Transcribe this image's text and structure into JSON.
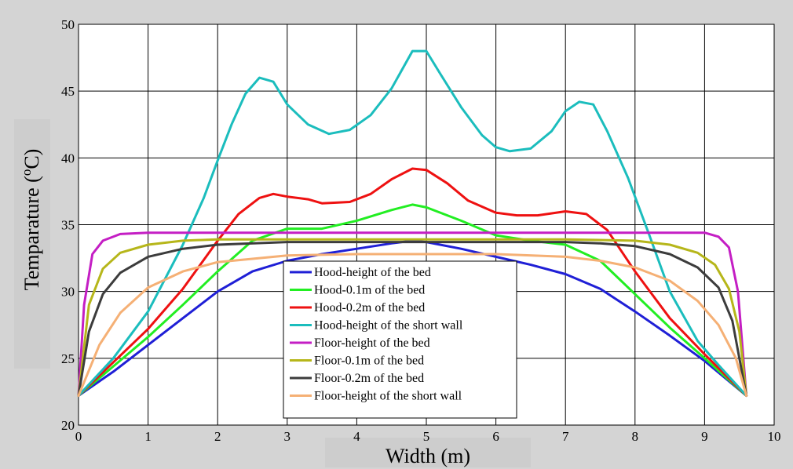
{
  "chart_data": {
    "type": "line",
    "xlabel": "Width (m)",
    "ylabel": "Temparature (oC)",
    "ylabel_parts": {
      "main": "Temparature (",
      "sup": "o",
      "unit": "C)"
    },
    "xlim": [
      0,
      10
    ],
    "ylim": [
      20,
      50
    ],
    "x_ticks": [
      "0",
      "1",
      "2",
      "3",
      "4",
      "5",
      "6",
      "7",
      "8",
      "9",
      "10"
    ],
    "y_ticks": [
      "20",
      "25",
      "30",
      "35",
      "40",
      "45",
      "50"
    ],
    "grid": true,
    "legend_position": "bottom-center",
    "series": [
      {
        "name": "Hood-height of the bed",
        "color": "#1f1fd6",
        "x": [
          0,
          0.5,
          1,
          1.5,
          2,
          2.5,
          3,
          3.5,
          4,
          4.5,
          4.8,
          5,
          5.5,
          6,
          6.5,
          7,
          7.5,
          8,
          8.5,
          9,
          9.6
        ],
        "y": [
          22.2,
          24,
          26,
          28,
          30,
          31.5,
          32.3,
          32.8,
          33.2,
          33.6,
          33.8,
          33.7,
          33.2,
          32.6,
          32,
          31.3,
          30.2,
          28.5,
          26.7,
          24.8,
          22.2
        ]
      },
      {
        "name": "Hood-0.1m of the bed",
        "color": "#22ee22",
        "x": [
          0,
          0.5,
          1,
          1.5,
          2,
          2.5,
          3,
          3.5,
          4,
          4.5,
          4.8,
          5,
          5.5,
          6,
          6.5,
          7,
          7.5,
          8,
          8.5,
          9,
          9.6
        ],
        "y": [
          22.2,
          24.4,
          26.6,
          29,
          31.5,
          33.8,
          34.7,
          34.7,
          35.3,
          36.1,
          36.5,
          36.3,
          35.3,
          34.2,
          33.8,
          33.5,
          32.3,
          29.8,
          27.3,
          25,
          22.2
        ]
      },
      {
        "name": "Hood-0.2m of the bed",
        "color": "#ee1111",
        "x": [
          0,
          0.5,
          1,
          1.5,
          2,
          2.3,
          2.6,
          2.8,
          3,
          3.3,
          3.5,
          3.9,
          4.2,
          4.5,
          4.8,
          5,
          5.3,
          5.6,
          6,
          6.3,
          6.6,
          7,
          7.3,
          7.6,
          8,
          8.5,
          9,
          9.6
        ],
        "y": [
          22.2,
          24.7,
          27.2,
          30.2,
          33.8,
          35.8,
          37,
          37.3,
          37.1,
          36.9,
          36.6,
          36.7,
          37.3,
          38.4,
          39.2,
          39.1,
          38.1,
          36.8,
          35.9,
          35.7,
          35.7,
          36,
          35.8,
          34.6,
          31.5,
          28,
          25.3,
          22.2
        ]
      },
      {
        "name": "Hood-height of the short wall",
        "color": "#1bbdbd",
        "x": [
          0,
          0.5,
          1,
          1.5,
          1.8,
          2,
          2.2,
          2.4,
          2.6,
          2.8,
          3,
          3.3,
          3.6,
          3.9,
          4.2,
          4.5,
          4.8,
          5,
          5.2,
          5.5,
          5.8,
          6,
          6.2,
          6.5,
          6.8,
          7,
          7.2,
          7.4,
          7.6,
          7.9,
          8.2,
          8.5,
          8.9,
          9.2,
          9.6
        ],
        "y": [
          22.2,
          25,
          28.5,
          33.5,
          37,
          39.8,
          42.5,
          44.8,
          46,
          45.7,
          44,
          42.5,
          41.8,
          42.1,
          43.2,
          45.2,
          48,
          48,
          46.3,
          43.8,
          41.7,
          40.8,
          40.5,
          40.7,
          42,
          43.5,
          44.2,
          44,
          42,
          38.5,
          34.3,
          30,
          26.3,
          24.5,
          22.2
        ]
      },
      {
        "name": "Floor-height of the bed",
        "color": "#c41ec4",
        "x": [
          0,
          0.08,
          0.2,
          0.35,
          0.6,
          1,
          2,
          3,
          4,
          5,
          6,
          7,
          8,
          9,
          9.2,
          9.35,
          9.48,
          9.6
        ],
        "y": [
          22.2,
          29,
          32.8,
          33.8,
          34.3,
          34.4,
          34.4,
          34.4,
          34.4,
          34.4,
          34.4,
          34.4,
          34.4,
          34.4,
          34.1,
          33.3,
          30,
          22.2
        ]
      },
      {
        "name": "Floor-0.1m of the bed",
        "color": "#b6b61a",
        "x": [
          0,
          0.15,
          0.35,
          0.6,
          1,
          1.5,
          2,
          3,
          4,
          5,
          6,
          7,
          8,
          8.5,
          8.9,
          9.15,
          9.35,
          9.5,
          9.6
        ],
        "y": [
          22.2,
          29,
          31.7,
          32.9,
          33.5,
          33.8,
          33.9,
          33.9,
          33.9,
          33.9,
          33.9,
          33.9,
          33.8,
          33.5,
          32.9,
          32,
          30.2,
          27,
          22.2
        ]
      },
      {
        "name": "Floor-0.2m of the bed",
        "color": "#3c3c3c",
        "x": [
          0,
          0.15,
          0.35,
          0.6,
          1,
          1.5,
          2,
          3,
          4,
          5,
          6,
          7,
          7.5,
          8,
          8.5,
          8.9,
          9.2,
          9.4,
          9.6
        ],
        "y": [
          22.2,
          27,
          29.8,
          31.4,
          32.6,
          33.2,
          33.5,
          33.7,
          33.7,
          33.7,
          33.7,
          33.7,
          33.6,
          33.4,
          32.8,
          31.8,
          30.3,
          27.8,
          22.2
        ]
      },
      {
        "name": "Floor-height of the short wall",
        "color": "#f5b075",
        "x": [
          0,
          0.3,
          0.6,
          1,
          1.5,
          2,
          3,
          4,
          5,
          6,
          7,
          7.5,
          8,
          8.5,
          8.9,
          9.2,
          9.45,
          9.6
        ],
        "y": [
          22.2,
          26,
          28.4,
          30.3,
          31.5,
          32.2,
          32.7,
          32.8,
          32.8,
          32.8,
          32.6,
          32.3,
          31.8,
          30.8,
          29.3,
          27.5,
          25,
          22.2
        ]
      }
    ]
  }
}
